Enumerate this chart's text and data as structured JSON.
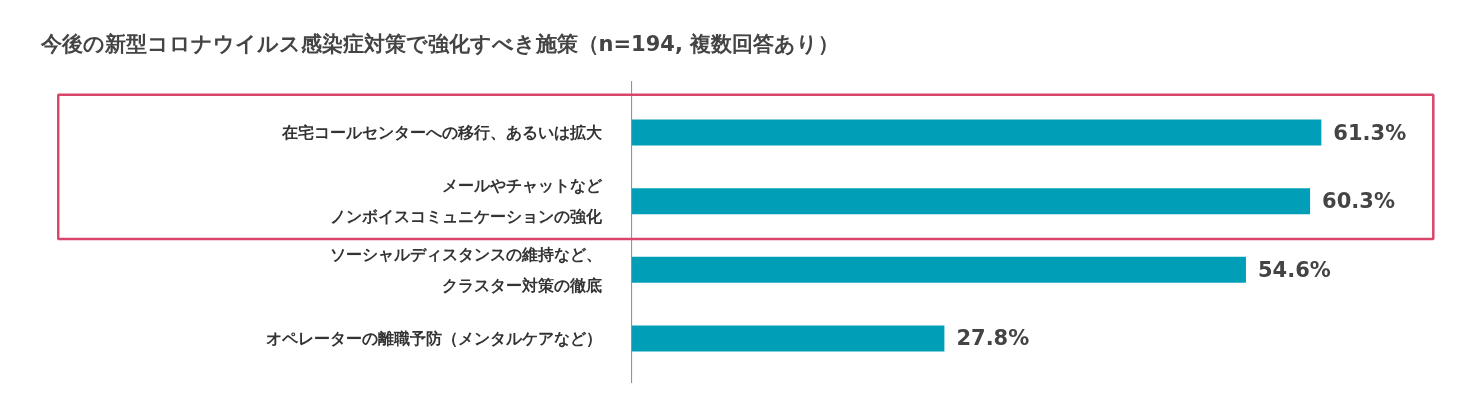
{
  "chart_data": {
    "type": "bar",
    "orientation": "horizontal",
    "title": "今後の新型コロナウイルス感染症対策で強化すべき施策（n=194, 複数回答あり）",
    "categories": [
      "在宅コールセンターへの移行、あるいは拡大",
      "メールやチャットなどノンボイスコミュニケーションの強化",
      "ソーシャルディスタンスの維持など、クラスター対策の徹底",
      "オペレーターの離職予防（メンタルケアなど）"
    ],
    "values": [
      61.3,
      60.3,
      54.6,
      27.8
    ],
    "value_labels": [
      "61.3%",
      "60.3%",
      "54.6%",
      "27.8%"
    ],
    "color": "#009fb7",
    "grid": false
  }
}
